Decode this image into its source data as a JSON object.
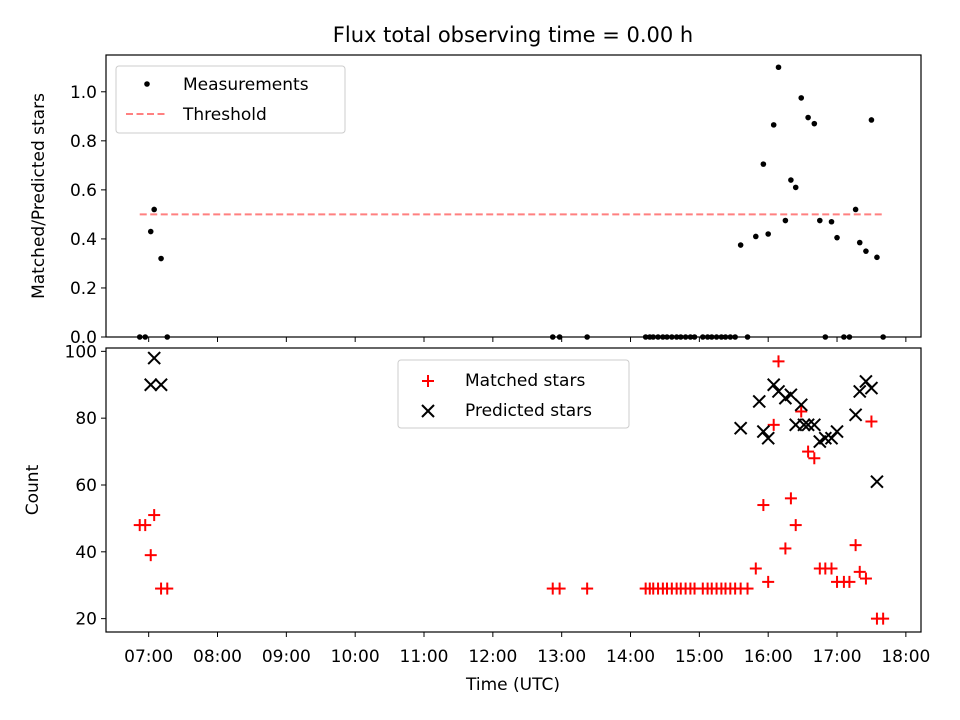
{
  "chart_data": [
    {
      "type": "scatter",
      "title": "Flux total observing time = 0.00 h",
      "xlabel": "",
      "ylabel": "Matched/Predicted stars",
      "ylim": [
        0,
        1.15
      ],
      "yticks": [
        0.0,
        0.2,
        0.4,
        0.6,
        0.8,
        1.0
      ],
      "ytick_labels": [
        "0.0",
        "0.2",
        "0.4",
        "0.6",
        "0.8",
        "1.0"
      ],
      "legend_position": "top-left",
      "series": [
        {
          "name": "Measurements",
          "marker": "dot",
          "color": "#000000",
          "x": [
            6.87,
            6.95,
            7.03,
            7.08,
            7.18,
            7.27,
            12.87,
            12.97,
            13.37,
            14.22,
            14.28,
            14.33,
            14.4,
            14.47,
            14.53,
            14.6,
            14.67,
            14.73,
            14.8,
            14.87,
            14.93,
            15.05,
            15.12,
            15.18,
            15.25,
            15.32,
            15.38,
            15.45,
            15.52,
            15.6,
            15.7,
            15.82,
            15.93,
            16.0,
            16.08,
            16.15,
            16.25,
            16.33,
            16.4,
            16.48,
            16.58,
            16.67,
            16.75,
            16.83,
            16.92,
            17.0,
            17.1,
            17.18,
            17.27,
            17.33,
            17.42,
            17.5,
            17.58,
            17.67
          ],
          "y": [
            0.0,
            0.0,
            0.43,
            0.52,
            0.32,
            0.0,
            0.0,
            0.0,
            0.0,
            0.0,
            0.0,
            0.0,
            0.0,
            0.0,
            0.0,
            0.0,
            0.0,
            0.0,
            0.0,
            0.0,
            0.0,
            0.0,
            0.0,
            0.0,
            0.0,
            0.0,
            0.0,
            0.0,
            0.0,
            0.375,
            0.0,
            0.41,
            0.705,
            0.42,
            0.865,
            1.1,
            0.475,
            0.64,
            0.61,
            0.975,
            0.895,
            0.87,
            0.475,
            0.0,
            0.47,
            0.405,
            0.0,
            0.0,
            0.52,
            0.385,
            0.35,
            0.885,
            0.325,
            0.0
          ]
        },
        {
          "name": "Threshold",
          "line_style": "dashed",
          "color": "#ff8080",
          "x": [
            6.87,
            17.67
          ],
          "y": [
            0.5,
            0.5
          ]
        }
      ]
    },
    {
      "type": "scatter",
      "xlabel": "Time (UTC)",
      "ylabel": "Count",
      "xlim": [
        6.38,
        18.22
      ],
      "ylim": [
        16,
        101
      ],
      "xticks": [
        7,
        8,
        9,
        10,
        11,
        12,
        13,
        14,
        15,
        16,
        17,
        18
      ],
      "xtick_labels": [
        "07:00",
        "08:00",
        "09:00",
        "10:00",
        "11:00",
        "12:00",
        "13:00",
        "14:00",
        "15:00",
        "16:00",
        "17:00",
        "18:00"
      ],
      "yticks": [
        20,
        40,
        60,
        80,
        100
      ],
      "ytick_labels": [
        "20",
        "40",
        "60",
        "80",
        "100"
      ],
      "legend_position": "top-center",
      "series": [
        {
          "name": "Matched stars",
          "marker": "plus",
          "color": "#ff0000",
          "x": [
            6.87,
            6.95,
            7.03,
            7.08,
            7.18,
            7.27,
            12.87,
            12.97,
            13.37,
            14.22,
            14.28,
            14.33,
            14.4,
            14.47,
            14.53,
            14.6,
            14.67,
            14.73,
            14.8,
            14.87,
            14.93,
            15.05,
            15.12,
            15.18,
            15.25,
            15.32,
            15.38,
            15.45,
            15.52,
            15.6,
            15.7,
            15.82,
            15.93,
            16.0,
            16.08,
            16.15,
            16.25,
            16.33,
            16.4,
            16.48,
            16.58,
            16.67,
            16.75,
            16.83,
            16.92,
            17.0,
            17.1,
            17.18,
            17.27,
            17.33,
            17.42,
            17.5,
            17.58,
            17.67
          ],
          "y": [
            48,
            48,
            39,
            51,
            29,
            29,
            29,
            29,
            29,
            29,
            29,
            29,
            29,
            29,
            29,
            29,
            29,
            29,
            29,
            29,
            29,
            29,
            29,
            29,
            29,
            29,
            29,
            29,
            29,
            29,
            29,
            35,
            54,
            31,
            78,
            97,
            41,
            56,
            48,
            82,
            70,
            68,
            35,
            35,
            35,
            31,
            31,
            31,
            42,
            34,
            32,
            79,
            20,
            20
          ]
        },
        {
          "name": "Predicted stars",
          "marker": "x",
          "color": "#000000",
          "x": [
            7.03,
            7.08,
            7.18,
            15.6,
            15.87,
            15.93,
            16.0,
            16.08,
            16.15,
            16.25,
            16.33,
            16.4,
            16.48,
            16.52,
            16.58,
            16.67,
            16.75,
            16.83,
            16.92,
            17.0,
            17.27,
            17.33,
            17.42,
            17.5,
            17.58
          ],
          "y": [
            90,
            98,
            90,
            77,
            85,
            76,
            74,
            90,
            88,
            86,
            87,
            78,
            84,
            78,
            78,
            78,
            73,
            74,
            74,
            76,
            81,
            88,
            91,
            89,
            61
          ]
        }
      ]
    }
  ]
}
